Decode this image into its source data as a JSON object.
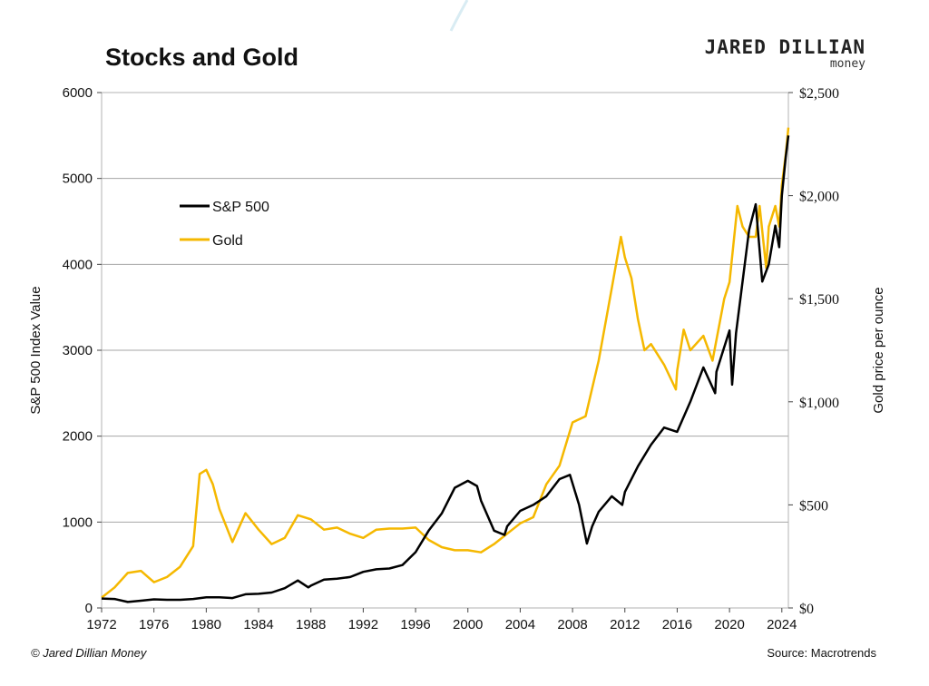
{
  "header": {
    "title": "Stocks and Gold",
    "brand_name": "JARED DILLIAN",
    "brand_sub": "money"
  },
  "footer": {
    "copyright": "© Jared Dillian Money",
    "source": "Source: Macrotrends"
  },
  "chart_data": {
    "type": "line",
    "title": "Stocks and Gold",
    "xlabel": "",
    "ylabel_left": "S&P 500 Index Value",
    "ylabel_right": "Gold price per ounce",
    "xlim": [
      1972,
      2024.5
    ],
    "ylim_left": [
      0,
      6000
    ],
    "ylim_right": [
      0,
      2500
    ],
    "x_ticks": [
      1972,
      1976,
      1980,
      1984,
      1988,
      1992,
      1996,
      2000,
      2004,
      2008,
      2012,
      2016,
      2020,
      2024
    ],
    "y_ticks_left": [
      "0",
      "1000",
      "2000",
      "3000",
      "4000",
      "5000",
      "6000"
    ],
    "y_ticks_right": [
      "$0",
      "$500",
      "$1,000",
      "$1,500",
      "$2,000",
      "$2,500"
    ],
    "grid": "horizontal",
    "legend_position": "top-left",
    "colors": {
      "sp500": "#000000",
      "gold": "#f5b800",
      "grid": "#a6a6a6"
    },
    "series": [
      {
        "name": "S&P 500",
        "axis": "left",
        "points": [
          [
            1972,
            110
          ],
          [
            1973,
            105
          ],
          [
            1974,
            70
          ],
          [
            1975,
            85
          ],
          [
            1976,
            100
          ],
          [
            1977,
            95
          ],
          [
            1978,
            95
          ],
          [
            1979,
            105
          ],
          [
            1980,
            125
          ],
          [
            1981,
            125
          ],
          [
            1982,
            115
          ],
          [
            1983,
            160
          ],
          [
            1984,
            165
          ],
          [
            1985,
            180
          ],
          [
            1986,
            230
          ],
          [
            1987,
            320
          ],
          [
            1987.8,
            240
          ],
          [
            1988,
            260
          ],
          [
            1989,
            330
          ],
          [
            1990,
            340
          ],
          [
            1991,
            360
          ],
          [
            1992,
            420
          ],
          [
            1993,
            450
          ],
          [
            1994,
            460
          ],
          [
            1995,
            500
          ],
          [
            1996,
            650
          ],
          [
            1997,
            900
          ],
          [
            1998,
            1100
          ],
          [
            1999,
            1400
          ],
          [
            2000,
            1480
          ],
          [
            2000.7,
            1420
          ],
          [
            2001,
            1250
          ],
          [
            2002,
            900
          ],
          [
            2002.8,
            850
          ],
          [
            2003,
            950
          ],
          [
            2004,
            1130
          ],
          [
            2005,
            1200
          ],
          [
            2006,
            1300
          ],
          [
            2007,
            1500
          ],
          [
            2007.8,
            1550
          ],
          [
            2008.5,
            1200
          ],
          [
            2009.1,
            750
          ],
          [
            2009.5,
            950
          ],
          [
            2010,
            1120
          ],
          [
            2011,
            1300
          ],
          [
            2011.8,
            1200
          ],
          [
            2012,
            1350
          ],
          [
            2013,
            1650
          ],
          [
            2014,
            1900
          ],
          [
            2015,
            2100
          ],
          [
            2016,
            2050
          ],
          [
            2017,
            2400
          ],
          [
            2018,
            2800
          ],
          [
            2018.9,
            2500
          ],
          [
            2019,
            2750
          ],
          [
            2020,
            3230
          ],
          [
            2020.2,
            2600
          ],
          [
            2020.5,
            3200
          ],
          [
            2021,
            3800
          ],
          [
            2021.5,
            4400
          ],
          [
            2022,
            4700
          ],
          [
            2022.5,
            3800
          ],
          [
            2023,
            4000
          ],
          [
            2023.5,
            4450
          ],
          [
            2023.8,
            4200
          ],
          [
            2024,
            4800
          ],
          [
            2024.3,
            5250
          ],
          [
            2024.5,
            5500
          ]
        ]
      },
      {
        "name": "Gold",
        "axis": "right",
        "points": [
          [
            1972,
            50
          ],
          [
            1973,
            100
          ],
          [
            1974,
            170
          ],
          [
            1975,
            180
          ],
          [
            1976,
            125
          ],
          [
            1977,
            150
          ],
          [
            1978,
            200
          ],
          [
            1979,
            300
          ],
          [
            1979.5,
            650
          ],
          [
            1980,
            670
          ],
          [
            1980.5,
            600
          ],
          [
            1981,
            480
          ],
          [
            1982,
            320
          ],
          [
            1983,
            460
          ],
          [
            1984,
            380
          ],
          [
            1985,
            310
          ],
          [
            1986,
            340
          ],
          [
            1987,
            450
          ],
          [
            1988,
            430
          ],
          [
            1989,
            380
          ],
          [
            1990,
            390
          ],
          [
            1991,
            360
          ],
          [
            1992,
            340
          ],
          [
            1993,
            380
          ],
          [
            1994,
            385
          ],
          [
            1995,
            385
          ],
          [
            1996,
            390
          ],
          [
            1997,
            330
          ],
          [
            1998,
            295
          ],
          [
            1999,
            280
          ],
          [
            2000,
            280
          ],
          [
            2001,
            270
          ],
          [
            2002,
            310
          ],
          [
            2003,
            360
          ],
          [
            2004,
            410
          ],
          [
            2005,
            440
          ],
          [
            2006,
            600
          ],
          [
            2007,
            690
          ],
          [
            2008,
            900
          ],
          [
            2009,
            930
          ],
          [
            2010,
            1200
          ],
          [
            2011,
            1550
          ],
          [
            2011.7,
            1800
          ],
          [
            2012,
            1700
          ],
          [
            2012.5,
            1600
          ],
          [
            2013,
            1400
          ],
          [
            2013.5,
            1250
          ],
          [
            2014,
            1280
          ],
          [
            2015,
            1180
          ],
          [
            2015.9,
            1060
          ],
          [
            2016,
            1150
          ],
          [
            2016.5,
            1350
          ],
          [
            2017,
            1250
          ],
          [
            2018,
            1320
          ],
          [
            2018.7,
            1200
          ],
          [
            2019,
            1300
          ],
          [
            2019.6,
            1500
          ],
          [
            2020,
            1580
          ],
          [
            2020.6,
            1950
          ],
          [
            2021,
            1850
          ],
          [
            2021.5,
            1800
          ],
          [
            2022,
            1800
          ],
          [
            2022.3,
            1950
          ],
          [
            2022.8,
            1650
          ],
          [
            2023,
            1850
          ],
          [
            2023.5,
            1950
          ],
          [
            2023.8,
            1850
          ],
          [
            2024,
            2050
          ],
          [
            2024.3,
            2200
          ],
          [
            2024.5,
            2330
          ]
        ]
      }
    ]
  }
}
